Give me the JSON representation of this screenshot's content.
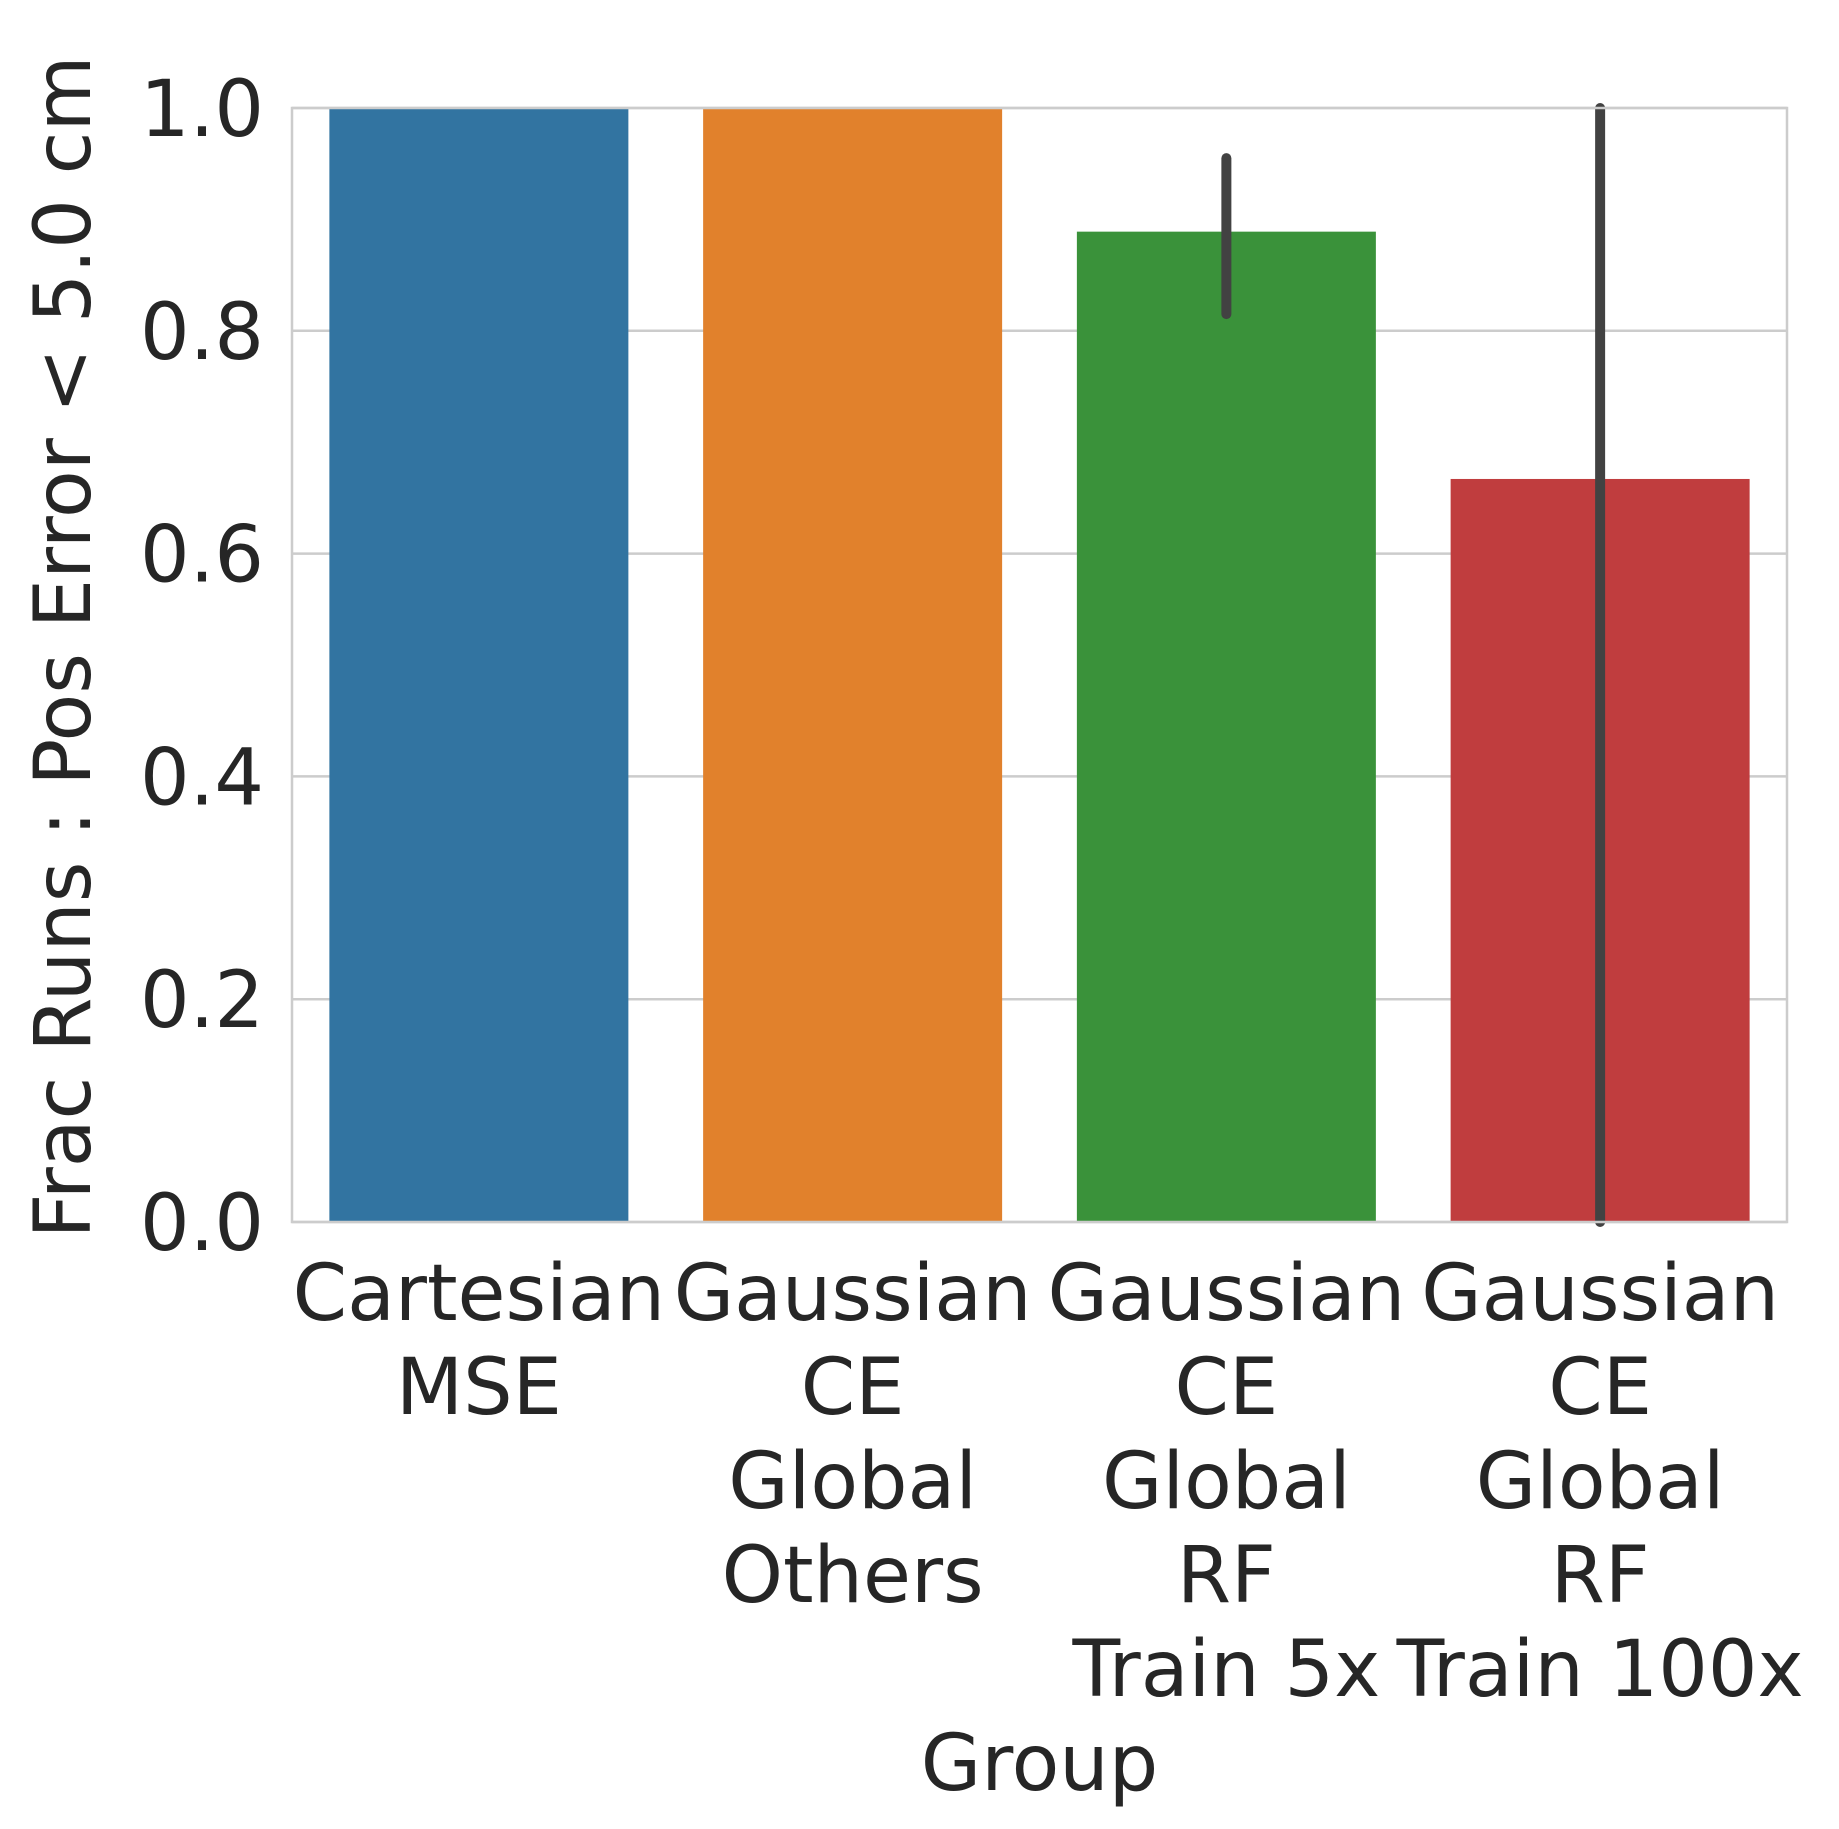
{
  "chart_data": {
    "type": "bar",
    "xlabel": "Group",
    "ylabel": "Frac Runs : Pos Error < 5.0 cm",
    "ylim": [
      0.0,
      1.0
    ],
    "yticks": [
      "0.0",
      "0.2",
      "0.4",
      "0.6",
      "0.8",
      "1.0"
    ],
    "grid": true,
    "categories": [
      [
        "Cartesian",
        "MSE"
      ],
      [
        "Gaussian",
        "CE",
        "Global",
        "Others"
      ],
      [
        "Gaussian",
        "CE",
        "Global",
        "RF",
        "Train 5x"
      ],
      [
        "Gaussian",
        "CE",
        "Global",
        "RF",
        "Train 100x"
      ]
    ],
    "values": [
      1.0,
      1.0,
      0.889,
      0.667
    ],
    "error_bars": [
      null,
      null,
      [
        0.815,
        0.955
      ],
      [
        0.0,
        1.0
      ]
    ],
    "colors": [
      "#3274a1",
      "#e1812c",
      "#3a923a",
      "#c03d3e"
    ],
    "error_bar_color": "#424242",
    "grid_color": "#cccccc",
    "text_color": "#262626"
  }
}
